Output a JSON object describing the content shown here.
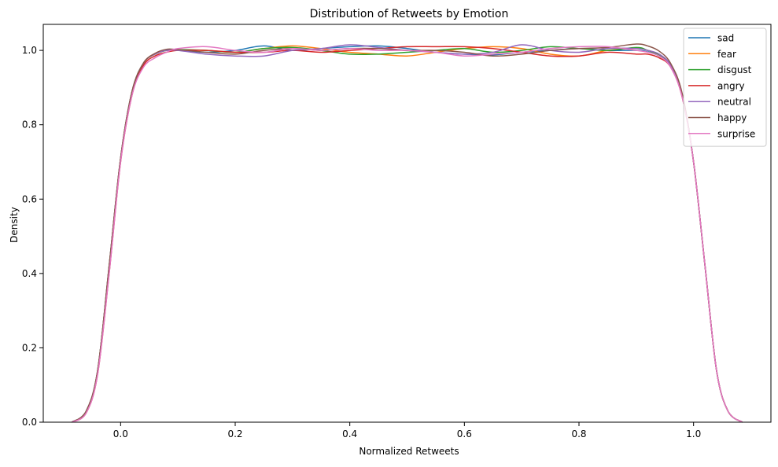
{
  "chart_data": {
    "type": "line",
    "title": "Distribution of Retweets by Emotion",
    "xlabel": "Normalized Retweets",
    "ylabel": "Density",
    "xlim": [
      -0.135,
      1.135
    ],
    "ylim": [
      0.0,
      1.07
    ],
    "xticks": [
      0.0,
      0.2,
      0.4,
      0.6,
      0.8,
      1.0
    ],
    "xtick_labels": [
      "0.0",
      "0.2",
      "0.4",
      "0.6",
      "0.8",
      "1.0"
    ],
    "yticks": [
      0.0,
      0.2,
      0.4,
      0.6,
      0.8,
      1.0
    ],
    "ytick_labels": [
      "0.0",
      "0.2",
      "0.4",
      "0.6",
      "0.8",
      "1.0"
    ],
    "grid": false,
    "legend_position": "top-right",
    "series": [
      {
        "name": "sad",
        "color": "#1f77b4",
        "x": [
          -0.085,
          -0.06,
          -0.04,
          -0.02,
          0.0,
          0.02,
          0.04,
          0.06,
          0.08,
          0.1,
          0.15,
          0.2,
          0.25,
          0.3,
          0.35,
          0.4,
          0.45,
          0.5,
          0.55,
          0.6,
          0.65,
          0.7,
          0.75,
          0.8,
          0.85,
          0.9,
          0.92,
          0.94,
          0.96,
          0.98,
          1.0,
          1.02,
          1.04,
          1.06,
          1.085
        ],
        "y": [
          0.0,
          0.03,
          0.14,
          0.42,
          0.71,
          0.89,
          0.966,
          0.99,
          1.0,
          1.0,
          0.995,
          1.0,
          1.012,
          1.0,
          1.005,
          1.01,
          1.012,
          1.005,
          0.995,
          0.99,
          0.988,
          0.995,
          1.0,
          1.005,
          1.0,
          1.0,
          0.996,
          0.985,
          0.96,
          0.88,
          0.7,
          0.42,
          0.14,
          0.03,
          0.0
        ]
      },
      {
        "name": "fear",
        "color": "#ff7f0e",
        "x": [
          -0.085,
          -0.06,
          -0.04,
          -0.02,
          0.0,
          0.02,
          0.04,
          0.06,
          0.08,
          0.1,
          0.15,
          0.2,
          0.25,
          0.3,
          0.35,
          0.4,
          0.45,
          0.5,
          0.55,
          0.6,
          0.65,
          0.7,
          0.75,
          0.8,
          0.85,
          0.9,
          0.92,
          0.94,
          0.96,
          0.98,
          1.0,
          1.02,
          1.04,
          1.06,
          1.085
        ],
        "y": [
          0.0,
          0.03,
          0.14,
          0.42,
          0.71,
          0.89,
          0.966,
          0.99,
          1.0,
          1.0,
          1.0,
          0.995,
          1.005,
          1.012,
          1.005,
          0.995,
          0.99,
          0.985,
          0.995,
          1.005,
          1.01,
          1.005,
          0.99,
          0.985,
          1.0,
          1.005,
          1.0,
          0.988,
          0.96,
          0.88,
          0.7,
          0.42,
          0.14,
          0.03,
          0.0
        ]
      },
      {
        "name": "disgust",
        "color": "#2ca02c",
        "x": [
          -0.085,
          -0.06,
          -0.04,
          -0.02,
          0.0,
          0.02,
          0.04,
          0.06,
          0.08,
          0.1,
          0.15,
          0.2,
          0.25,
          0.3,
          0.35,
          0.4,
          0.45,
          0.5,
          0.55,
          0.6,
          0.65,
          0.7,
          0.75,
          0.8,
          0.85,
          0.9,
          0.92,
          0.94,
          0.96,
          0.98,
          1.0,
          1.02,
          1.04,
          1.06,
          1.085
        ],
        "y": [
          0.0,
          0.03,
          0.14,
          0.42,
          0.71,
          0.89,
          0.966,
          0.99,
          1.0,
          1.002,
          1.0,
          0.995,
          1.005,
          1.008,
          1.0,
          0.99,
          0.99,
          0.995,
          1.0,
          1.005,
          0.995,
          1.0,
          1.01,
          1.005,
          1.0,
          1.008,
          1.0,
          0.988,
          0.96,
          0.88,
          0.7,
          0.42,
          0.14,
          0.03,
          0.0
        ]
      },
      {
        "name": "angry",
        "color": "#d62728",
        "x": [
          -0.085,
          -0.06,
          -0.04,
          -0.02,
          0.0,
          0.02,
          0.04,
          0.06,
          0.08,
          0.1,
          0.15,
          0.2,
          0.25,
          0.3,
          0.35,
          0.4,
          0.45,
          0.5,
          0.55,
          0.6,
          0.65,
          0.7,
          0.75,
          0.8,
          0.85,
          0.9,
          0.92,
          0.94,
          0.96,
          0.98,
          1.0,
          1.02,
          1.04,
          1.06,
          1.085
        ],
        "y": [
          0.0,
          0.025,
          0.13,
          0.4,
          0.7,
          0.88,
          0.96,
          0.985,
          0.995,
          1.0,
          1.0,
          0.995,
          0.995,
          1.0,
          0.995,
          1.0,
          1.005,
          1.01,
          1.01,
          1.01,
          1.005,
          0.995,
          0.985,
          0.985,
          0.995,
          0.99,
          0.99,
          0.98,
          0.955,
          0.875,
          0.7,
          0.42,
          0.14,
          0.03,
          0.0
        ]
      },
      {
        "name": "neutral",
        "color": "#9467bd",
        "x": [
          -0.085,
          -0.06,
          -0.04,
          -0.02,
          0.0,
          0.02,
          0.04,
          0.06,
          0.08,
          0.1,
          0.15,
          0.2,
          0.25,
          0.3,
          0.35,
          0.4,
          0.45,
          0.5,
          0.55,
          0.6,
          0.65,
          0.7,
          0.75,
          0.8,
          0.85,
          0.9,
          0.92,
          0.94,
          0.96,
          0.98,
          1.0,
          1.02,
          1.04,
          1.06,
          1.085
        ],
        "y": [
          0.0,
          0.03,
          0.14,
          0.42,
          0.71,
          0.89,
          0.966,
          0.99,
          1.0,
          1.0,
          0.99,
          0.985,
          0.985,
          1.0,
          1.005,
          1.015,
          1.008,
          1.0,
          0.995,
          0.99,
          0.995,
          1.015,
          1.0,
          0.995,
          1.005,
          1.005,
          1.0,
          0.99,
          0.96,
          0.88,
          0.7,
          0.42,
          0.14,
          0.03,
          0.0
        ]
      },
      {
        "name": "happy",
        "color": "#8c564b",
        "x": [
          -0.085,
          -0.06,
          -0.04,
          -0.02,
          0.0,
          0.02,
          0.04,
          0.06,
          0.08,
          0.1,
          0.15,
          0.2,
          0.25,
          0.3,
          0.35,
          0.4,
          0.45,
          0.5,
          0.55,
          0.6,
          0.65,
          0.7,
          0.75,
          0.8,
          0.85,
          0.9,
          0.92,
          0.94,
          0.96,
          0.98,
          1.0,
          1.02,
          1.04,
          1.06,
          1.085
        ],
        "y": [
          0.0,
          0.03,
          0.14,
          0.42,
          0.71,
          0.89,
          0.966,
          0.992,
          1.003,
          1.002,
          0.995,
          0.99,
          1.0,
          1.005,
          1.0,
          1.005,
          1.005,
          1.0,
          1.0,
          0.995,
          0.985,
          0.99,
          1.0,
          1.005,
          1.008,
          1.017,
          1.012,
          0.998,
          0.965,
          0.885,
          0.7,
          0.42,
          0.14,
          0.03,
          0.0
        ]
      },
      {
        "name": "surprise",
        "color": "#e377c2",
        "x": [
          -0.085,
          -0.06,
          -0.04,
          -0.02,
          0.0,
          0.02,
          0.04,
          0.06,
          0.08,
          0.1,
          0.15,
          0.2,
          0.25,
          0.3,
          0.35,
          0.4,
          0.45,
          0.5,
          0.55,
          0.6,
          0.65,
          0.7,
          0.75,
          0.8,
          0.85,
          0.9,
          0.92,
          0.94,
          0.96,
          0.98,
          1.0,
          1.02,
          1.04,
          1.06,
          1.085
        ],
        "y": [
          0.0,
          0.025,
          0.13,
          0.4,
          0.7,
          0.88,
          0.955,
          0.98,
          0.995,
          1.005,
          1.01,
          1.0,
          0.995,
          1.005,
          1.0,
          1.005,
          1.0,
          1.0,
          0.995,
          0.985,
          0.99,
          0.995,
          1.005,
          1.01,
          1.01,
          1.0,
          0.995,
          0.985,
          0.955,
          0.875,
          0.7,
          0.42,
          0.14,
          0.03,
          0.0
        ]
      }
    ]
  }
}
